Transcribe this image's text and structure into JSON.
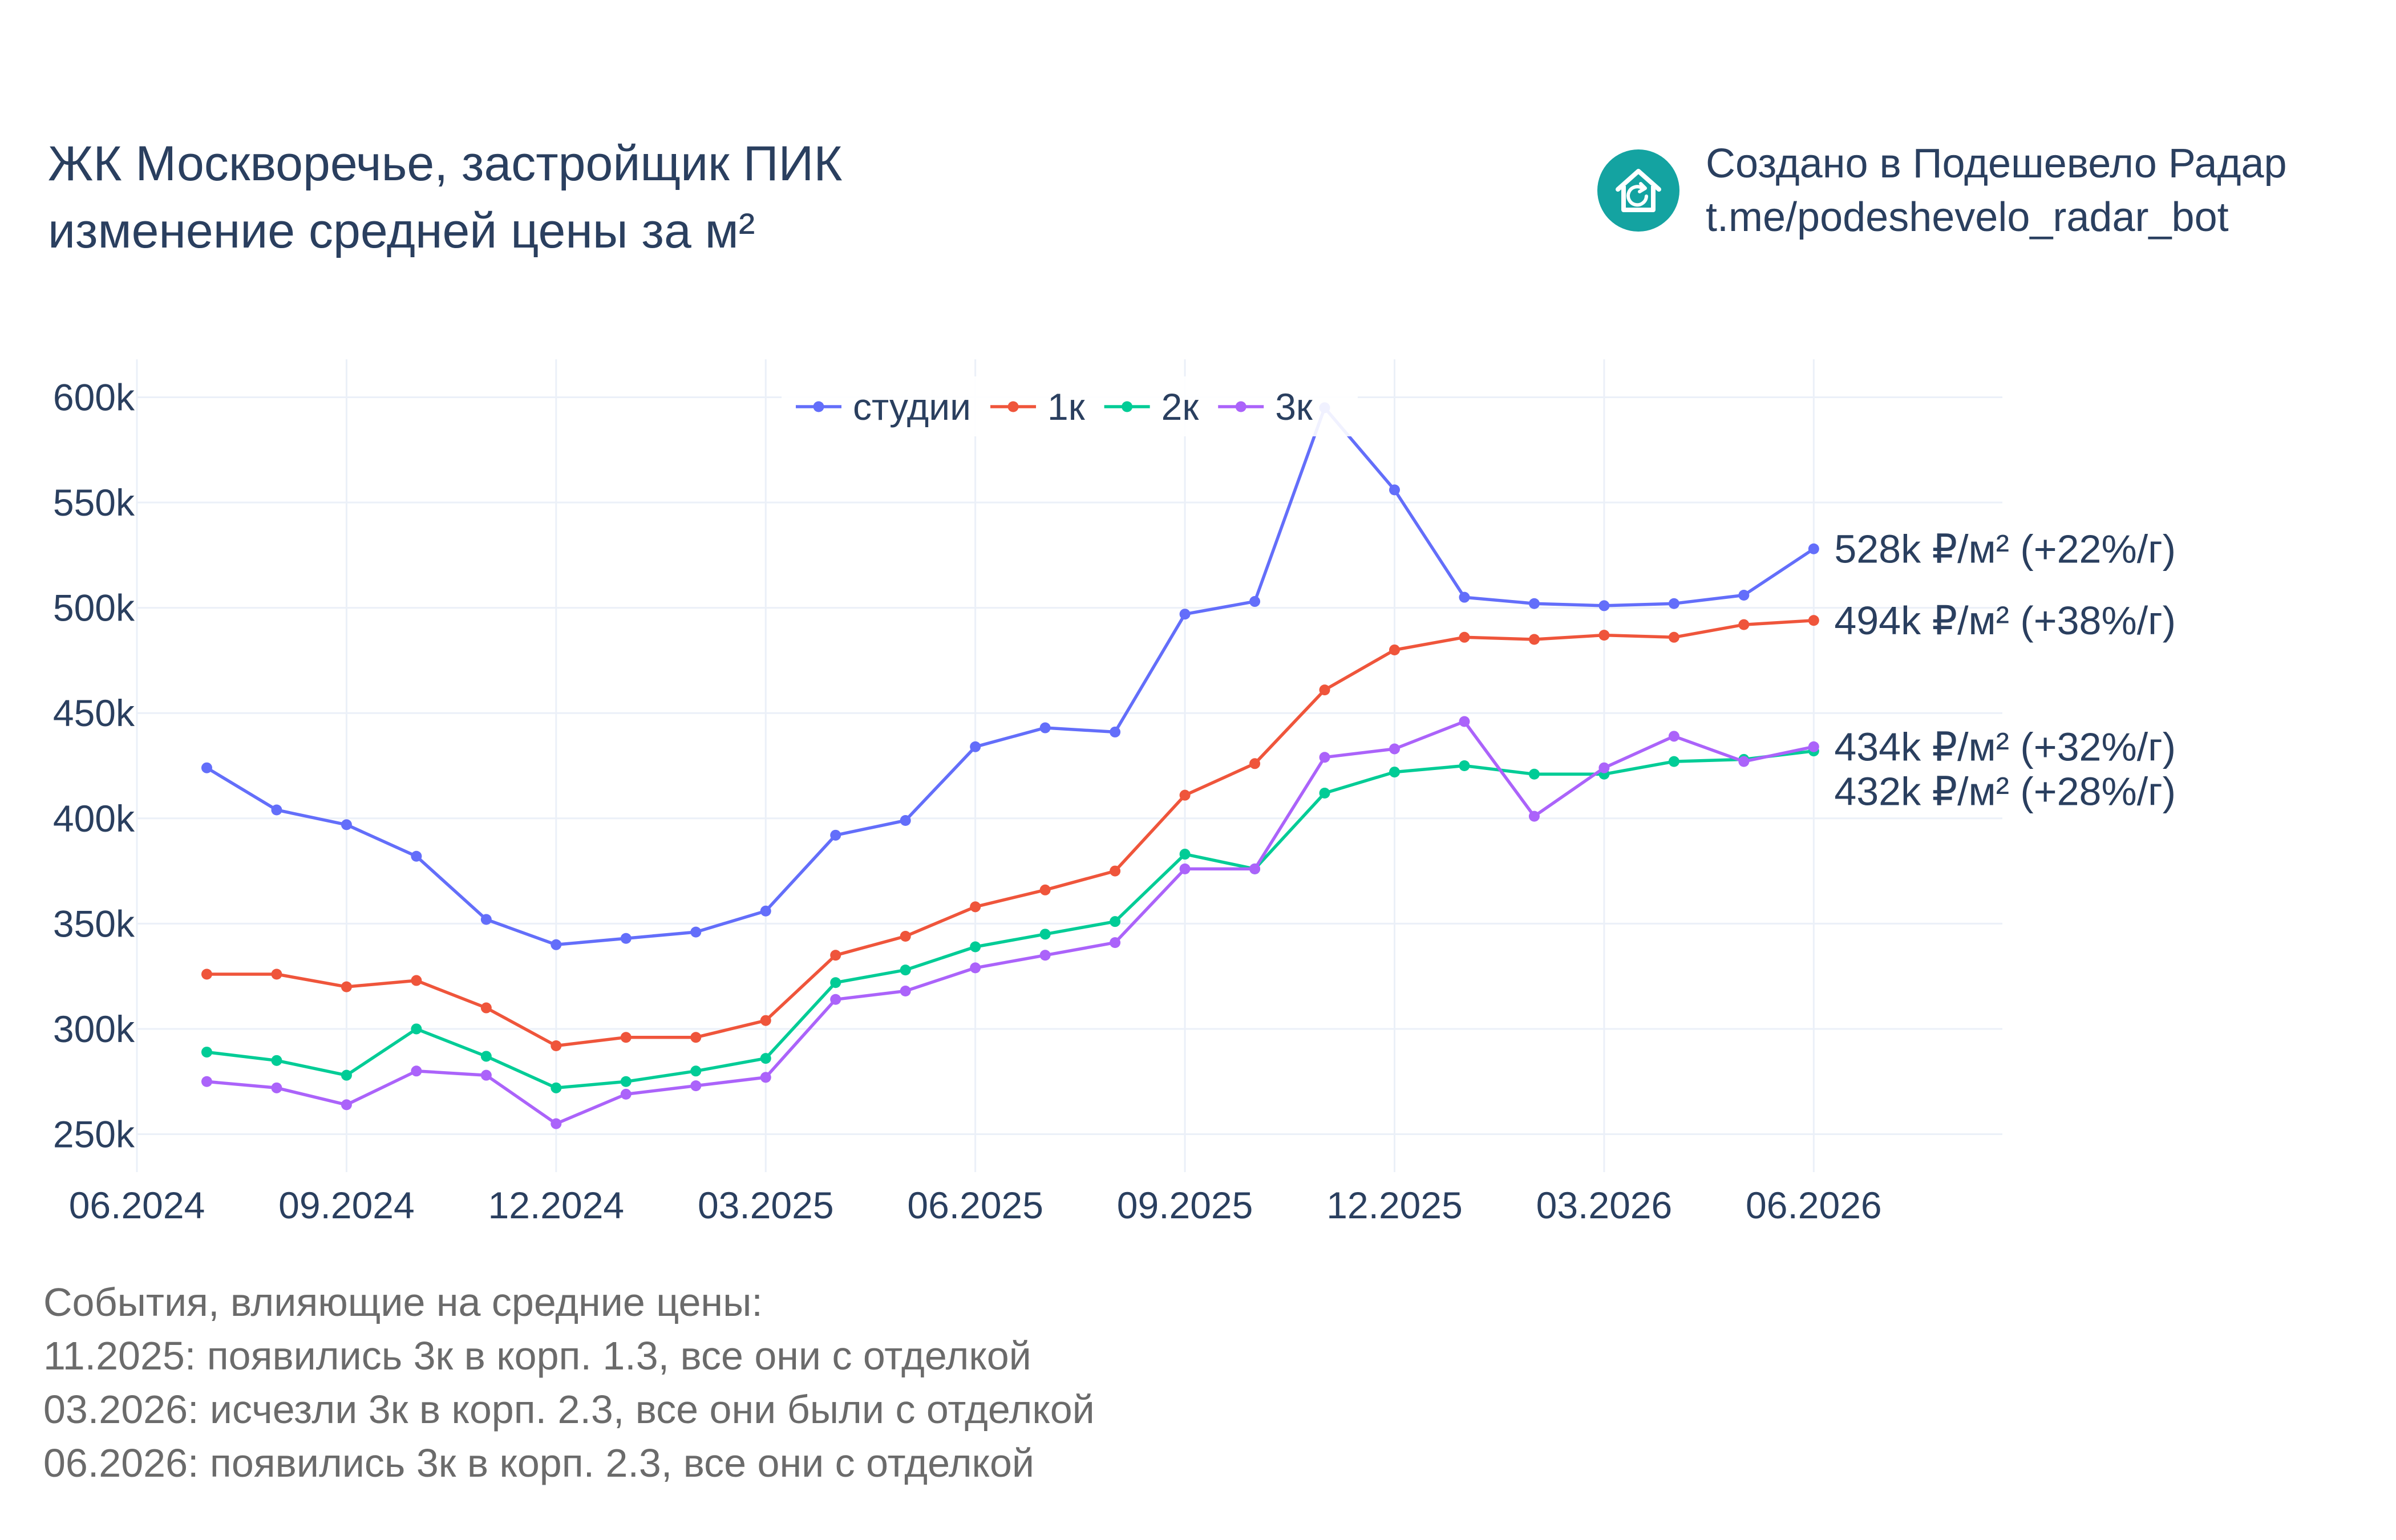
{
  "title": {
    "line1": "ЖК Москворечье, застройщик ПИК",
    "line2": "изменение средней цены за м²"
  },
  "brand": {
    "icon": "house-refresh-icon",
    "color": "#14a3a1",
    "line1": "Создано в Подешевело Радар",
    "line2": "t.me/podeshevelo_radar_bot"
  },
  "events": {
    "heading": "События, влияющие на средние цены:",
    "items": [
      "11.2025: появились 3к в корп. 1.3, все они с отделкой",
      "03.2026: исчезли 3к в корп. 2.3, все они были с отделкой",
      "06.2026: появились 3к в корп. 2.3, все они с отделкой"
    ]
  },
  "chart_data": {
    "type": "line",
    "x": [
      "07.2024",
      "08.2024",
      "09.2024",
      "10.2024",
      "11.2024",
      "12.2024",
      "01.2025",
      "02.2025",
      "03.2025",
      "04.2025",
      "05.2025",
      "06.2025",
      "07.2025",
      "08.2025",
      "09.2025",
      "10.2025",
      "11.2025",
      "12.2025",
      "01.2026",
      "02.2026",
      "03.2026",
      "04.2026",
      "05.2026",
      "06.2026"
    ],
    "x_ticks": [
      "06.2024",
      "09.2024",
      "12.2024",
      "03.2025",
      "06.2025",
      "09.2025",
      "12.2025",
      "03.2026",
      "06.2026"
    ],
    "y_ticks": [
      "250k",
      "300k",
      "350k",
      "400k",
      "450k",
      "500k",
      "550k",
      "600k"
    ],
    "ylim": [
      232000,
      618000
    ],
    "grid": true,
    "legend_position": "top-center",
    "series": [
      {
        "name": "студии",
        "color": "#636efa",
        "values": [
          424000,
          404000,
          397000,
          382000,
          352000,
          340000,
          343000,
          346000,
          356000,
          392000,
          399000,
          434000,
          443000,
          441000,
          497000,
          503000,
          595000,
          556000,
          505000,
          502000,
          501000,
          502000,
          506000,
          528000
        ],
        "end_label": "528k ₽/м² (+22%/г)"
      },
      {
        "name": "1к",
        "color": "#ef553b",
        "values": [
          326000,
          326000,
          320000,
          323000,
          310000,
          292000,
          296000,
          296000,
          304000,
          335000,
          344000,
          358000,
          366000,
          375000,
          411000,
          426000,
          461000,
          480000,
          486000,
          485000,
          487000,
          486000,
          492000,
          494000
        ],
        "end_label": "494k ₽/м² (+38%/г)"
      },
      {
        "name": "2к",
        "color": "#00cc96",
        "values": [
          289000,
          285000,
          278000,
          300000,
          287000,
          272000,
          275000,
          280000,
          286000,
          322000,
          328000,
          339000,
          345000,
          351000,
          383000,
          376000,
          412000,
          422000,
          425000,
          421000,
          421000,
          427000,
          428000,
          432000
        ],
        "end_label": "432k ₽/м² (+28%/г)"
      },
      {
        "name": "3к",
        "color": "#ab63fa",
        "values": [
          275000,
          272000,
          264000,
          280000,
          278000,
          255000,
          269000,
          273000,
          277000,
          314000,
          318000,
          329000,
          335000,
          341000,
          376000,
          376000,
          429000,
          433000,
          446000,
          401000,
          424000,
          439000,
          427000,
          434000
        ],
        "end_label": "434k ₽/м² (+32%/г)"
      }
    ]
  }
}
